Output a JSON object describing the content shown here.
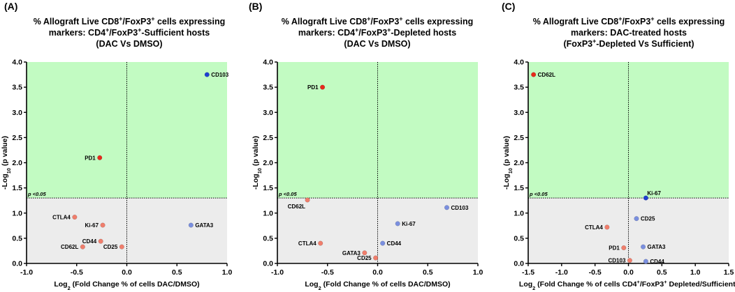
{
  "panels": [
    {
      "label": "(A)",
      "title_lines": [
        [
          {
            "t": "% Allograft Live CD8"
          },
          {
            "t": "+",
            "sup": true
          },
          {
            "t": "/FoxP3"
          },
          {
            "t": "+",
            "sup": true
          },
          {
            "t": " cells expressing"
          }
        ],
        [
          {
            "t": "markers: CD4"
          },
          {
            "t": "+",
            "sup": true
          },
          {
            "t": "/FoxP3"
          },
          {
            "t": "+",
            "sup": true
          },
          {
            "t": "-Sufficient hosts"
          }
        ],
        [
          {
            "t": "(DAC Vs DMSO)"
          }
        ]
      ],
      "xlabel": [
        {
          "t": "Log"
        },
        {
          "t": "2",
          "sub": true
        },
        {
          "t": " (Fold Change % of cells DAC/DMSO)"
        }
      ],
      "ylabel": [
        {
          "t": "-Log"
        },
        {
          "t": "10",
          "sub": true
        },
        {
          "t": " (p value)"
        }
      ],
      "threshold_label": "p <0.05"
    },
    {
      "label": "(B)",
      "title_lines": [
        [
          {
            "t": "% Allograft Live CD8"
          },
          {
            "t": "+",
            "sup": true
          },
          {
            "t": "/FoxP3"
          },
          {
            "t": "+",
            "sup": true
          },
          {
            "t": " cells expressing"
          }
        ],
        [
          {
            "t": "markers: CD4"
          },
          {
            "t": "+",
            "sup": true
          },
          {
            "t": "/FoxP3"
          },
          {
            "t": "+",
            "sup": true
          },
          {
            "t": "-Depleted hosts"
          }
        ],
        [
          {
            "t": "(DAC Vs DMSO)"
          }
        ]
      ],
      "xlabel": [
        {
          "t": "Log"
        },
        {
          "t": "2",
          "sub": true
        },
        {
          "t": " (Fold Change % of cells DAC/DMSO)"
        }
      ],
      "ylabel": [
        {
          "t": "-Log"
        },
        {
          "t": "10",
          "sub": true
        },
        {
          "t": " (p value)"
        }
      ],
      "threshold_label": "p <0.05"
    },
    {
      "label": "(C)",
      "title_lines": [
        [
          {
            "t": "% Allograft Live CD8"
          },
          {
            "t": "+",
            "sup": true
          },
          {
            "t": "/FoxP3"
          },
          {
            "t": "+",
            "sup": true
          },
          {
            "t": " cells expressing"
          }
        ],
        [
          {
            "t": "markers: DAC-treated hosts"
          }
        ],
        [
          {
            "t": "(FoxP3"
          },
          {
            "t": "+",
            "sup": true
          },
          {
            "t": "-Depleted Vs Sufficient)"
          }
        ]
      ],
      "xlabel": [
        {
          "t": "Log"
        },
        {
          "t": "2",
          "sub": true
        },
        {
          "t": " (Fold Change % of cells CD4"
        },
        {
          "t": "+",
          "sup": true
        },
        {
          "t": "/FoxP3"
        },
        {
          "t": "+",
          "sup": true
        },
        {
          "t": " Depleted/Sufficient)"
        }
      ],
      "ylabel": [
        {
          "t": "-Log"
        },
        {
          "t": "10",
          "sub": true
        },
        {
          "t": " (p value)"
        }
      ],
      "threshold_label": "p <0.05"
    }
  ],
  "chart_data": [
    {
      "type": "scatter",
      "title": "% Allograft Live CD8+/FoxP3+ cells expressing markers: CD4+/FoxP3+-Sufficient hosts (DAC Vs DMSO)",
      "xlabel": "Log2 (Fold Change % of cells DAC/DMSO)",
      "ylabel": "-Log10 (p value)",
      "xlim": [
        -1.0,
        1.0
      ],
      "ylim": [
        0,
        4.0
      ],
      "xticks": [
        "-1.0",
        "-0.5",
        "0.0",
        "0.5",
        "1.0"
      ],
      "yticks": [
        "0.0",
        "0.5",
        "1.0",
        "1.5",
        "2.0",
        "2.5",
        "3.0",
        "3.5",
        "4.0"
      ],
      "threshold": 1.3,
      "points": [
        {
          "label": "CD103",
          "x": 0.8,
          "y": 3.75,
          "color": "#1f3fd1",
          "side": "right"
        },
        {
          "label": "PD1",
          "x": -0.27,
          "y": 2.1,
          "color": "#e8291c",
          "side": "left"
        },
        {
          "label": "CTLA4",
          "x": -0.52,
          "y": 0.92,
          "color": "#f07e6c",
          "side": "left"
        },
        {
          "label": "Ki-67",
          "x": -0.24,
          "y": 0.76,
          "color": "#f07e6c",
          "side": "left"
        },
        {
          "label": "GATA3",
          "x": 0.64,
          "y": 0.76,
          "color": "#7a8fdf",
          "side": "right"
        },
        {
          "label": "CD44",
          "x": -0.26,
          "y": 0.44,
          "color": "#f07e6c",
          "side": "left"
        },
        {
          "label": "CD62L",
          "x": -0.44,
          "y": 0.33,
          "color": "#f07e6c",
          "side": "left"
        },
        {
          "label": "CD25",
          "x": -0.05,
          "y": 0.33,
          "color": "#f07e6c",
          "side": "left"
        }
      ]
    },
    {
      "type": "scatter",
      "title": "% Allograft Live CD8+/FoxP3+ cells expressing markers: CD4+/FoxP3+-Depleted hosts (DAC Vs DMSO)",
      "xlabel": "Log2 (Fold Change % of cells DAC/DMSO)",
      "ylabel": "-Log10 (p value)",
      "xlim": [
        -1.0,
        1.0
      ],
      "ylim": [
        0,
        4.0
      ],
      "xticks": [
        "-1.0",
        "-0.5",
        "0.0",
        "0.5",
        "1.0"
      ],
      "yticks": [
        "0.0",
        "0.5",
        "1.0",
        "1.5",
        "2.0",
        "2.5",
        "3.0",
        "3.5",
        "4.0"
      ],
      "threshold": 1.3,
      "points": [
        {
          "label": "PD1",
          "x": -0.55,
          "y": 3.5,
          "color": "#e8291c",
          "side": "left"
        },
        {
          "label": "CD62L",
          "x": -0.7,
          "y": 1.26,
          "color": "#f07e6c",
          "side": "below-left"
        },
        {
          "label": "CD103",
          "x": 0.69,
          "y": 1.11,
          "color": "#7a8fdf",
          "side": "right"
        },
        {
          "label": "Ki-67",
          "x": 0.2,
          "y": 0.79,
          "color": "#7a8fdf",
          "side": "right"
        },
        {
          "label": "CTLA4",
          "x": -0.57,
          "y": 0.4,
          "color": "#f07e6c",
          "side": "left"
        },
        {
          "label": "CD44",
          "x": 0.05,
          "y": 0.4,
          "color": "#7a8fdf",
          "side": "right"
        },
        {
          "label": "GATA3",
          "x": -0.13,
          "y": 0.21,
          "color": "#f07e6c",
          "side": "left"
        },
        {
          "label": "CD25",
          "x": -0.02,
          "y": 0.11,
          "color": "#f07e6c",
          "side": "left"
        }
      ]
    },
    {
      "type": "scatter",
      "title": "% Allograft Live CD8+/FoxP3+ cells expressing markers: DAC-treated hosts (FoxP3+-Depleted Vs Sufficient)",
      "xlabel": "Log2 (Fold Change % of cells CD4+/FoxP3+ Depleted/Sufficient)",
      "ylabel": "-Log10 (p value)",
      "xlim": [
        -1.5,
        1.5
      ],
      "ylim": [
        0,
        4.0
      ],
      "xticks": [
        "-1.5",
        "-1.0",
        "-0.5",
        "0.0",
        "0.5",
        "1.0",
        "1.5"
      ],
      "yticks": [
        "0.0",
        "0.5",
        "1.0",
        "1.5",
        "2.0",
        "2.5",
        "3.0",
        "3.5",
        "4.0"
      ],
      "threshold": 1.3,
      "points": [
        {
          "label": "CD62L",
          "x": -1.42,
          "y": 3.75,
          "color": "#e8291c",
          "side": "right"
        },
        {
          "label": "Ki-67",
          "x": 0.26,
          "y": 1.3,
          "color": "#1f3fd1",
          "side": "above-right"
        },
        {
          "label": "CD25",
          "x": 0.12,
          "y": 0.89,
          "color": "#7a8fdf",
          "side": "right"
        },
        {
          "label": "CTLA4",
          "x": -0.32,
          "y": 0.72,
          "color": "#f07e6c",
          "side": "left"
        },
        {
          "label": "GATA3",
          "x": 0.22,
          "y": 0.33,
          "color": "#7a8fdf",
          "side": "right"
        },
        {
          "label": "PD1",
          "x": -0.07,
          "y": 0.31,
          "color": "#f07e6c",
          "side": "left"
        },
        {
          "label": "CD103",
          "x": 0.02,
          "y": 0.06,
          "color": "#f07e6c",
          "side": "left"
        },
        {
          "label": "CD44",
          "x": 0.26,
          "y": 0.04,
          "color": "#7a8fdf",
          "side": "right"
        }
      ]
    }
  ]
}
